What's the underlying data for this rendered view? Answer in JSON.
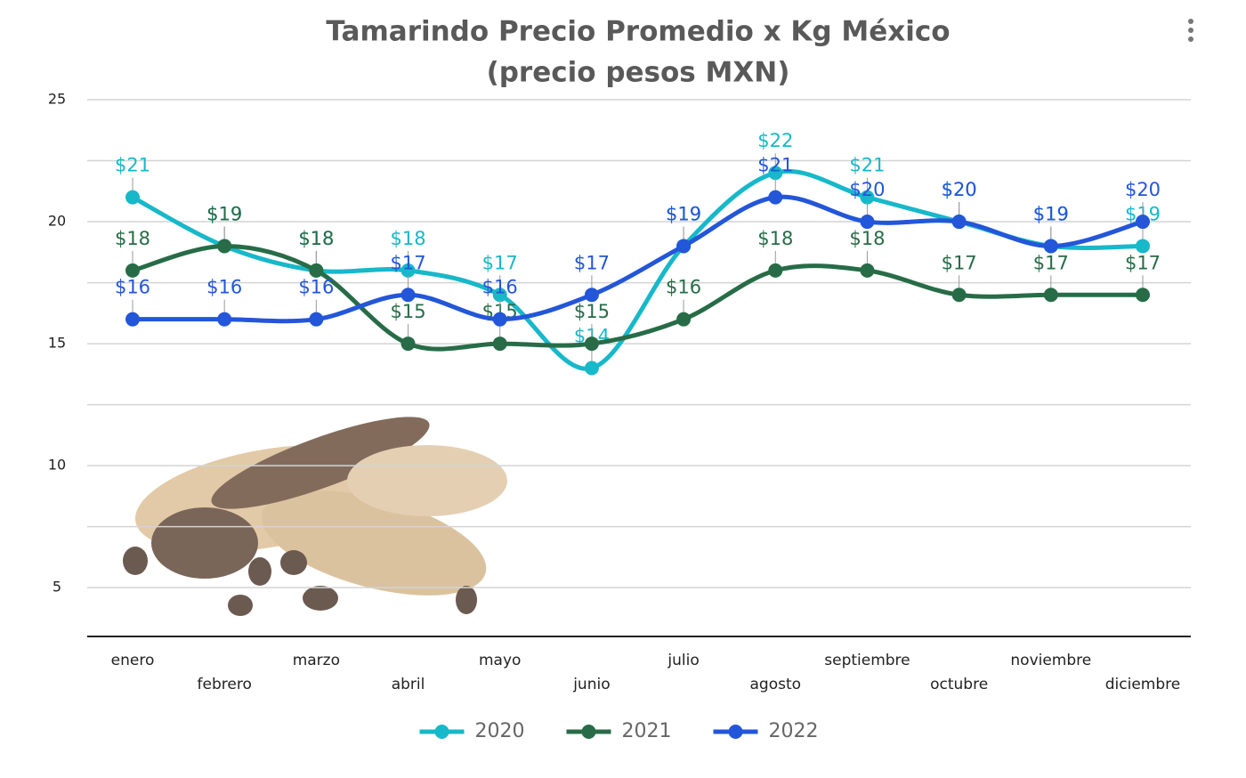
{
  "chart_data": {
    "type": "line",
    "title": "Tamarindo Precio Promedio x Kg México",
    "subtitle": "(precio pesos MXN)",
    "categories": [
      "enero",
      "febrero",
      "marzo",
      "abril",
      "mayo",
      "junio",
      "julio",
      "agosto",
      "septiembre",
      "octubre",
      "noviembre",
      "diciembre"
    ],
    "series": [
      {
        "name": "2020",
        "color": "#17b8c9",
        "values": [
          21,
          19,
          18,
          18,
          17,
          14,
          19,
          22,
          21,
          20,
          19,
          19
        ],
        "value_labels": [
          "$21",
          "$19",
          "$18",
          "$18",
          "$17",
          "$14",
          "$19",
          "$22",
          "$21",
          "$20",
          "$19",
          "$19"
        ]
      },
      {
        "name": "2021",
        "color": "#276c47",
        "values": [
          18,
          19,
          18,
          15,
          15,
          15,
          16,
          18,
          18,
          17,
          17,
          17
        ],
        "value_labels": [
          "$18",
          "$19",
          "$18",
          "$15",
          "$15",
          "$15",
          "$16",
          "$18",
          "$18",
          "$17",
          "$17",
          "$17"
        ]
      },
      {
        "name": "2022",
        "color": "#2356d8",
        "values": [
          16,
          16,
          16,
          17,
          16,
          17,
          19,
          21,
          20,
          20,
          19,
          20
        ],
        "value_labels": [
          "$16",
          "$16",
          "$16",
          "$17",
          "$16",
          "$17",
          "$19",
          "$21",
          "$20",
          "$20",
          "$19",
          "$20"
        ]
      }
    ],
    "ylim": [
      3,
      25
    ],
    "yticks": [
      5,
      10,
      15,
      20,
      25
    ],
    "minor_yticks": [
      7.5,
      12.5,
      17.5,
      22.5
    ],
    "grid": true,
    "smooth": true,
    "legend": "bottom"
  }
}
